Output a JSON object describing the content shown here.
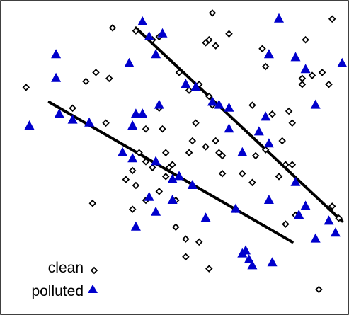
{
  "chart_data": {
    "type": "scatter",
    "title": "",
    "xlabel": "",
    "ylabel": "",
    "xlim": [
      0,
      100
    ],
    "ylim": [
      0,
      100
    ],
    "grid": false,
    "legend_position": "bottom-left",
    "border_color": "#000000",
    "series": [
      {
        "name": "clean",
        "marker": "diamond-outline",
        "color": "#000000",
        "points": [
          [
            60,
            98
          ],
          [
            30,
            93
          ],
          [
            37,
            92
          ],
          [
            44,
            90
          ],
          [
            42,
            89
          ],
          [
            59,
            89
          ],
          [
            65,
            91
          ],
          [
            75,
            86
          ],
          [
            88,
            89
          ],
          [
            96,
            96
          ],
          [
            58,
            88
          ],
          [
            61,
            87
          ],
          [
            76,
            80
          ],
          [
            50,
            78
          ],
          [
            25,
            78
          ],
          [
            22,
            75
          ],
          [
            29,
            76
          ],
          [
            4,
            73
          ],
          [
            56,
            74
          ],
          [
            53,
            72
          ],
          [
            87,
            76
          ],
          [
            90,
            77
          ],
          [
            93,
            78
          ],
          [
            87,
            74
          ],
          [
            95,
            74
          ],
          [
            59,
            70
          ],
          [
            72,
            67
          ],
          [
            83,
            65
          ],
          [
            60,
            67
          ],
          [
            44,
            66
          ],
          [
            18,
            66
          ],
          [
            28,
            61
          ],
          [
            78,
            64
          ],
          [
            84,
            61
          ],
          [
            55,
            61
          ],
          [
            40,
            59
          ],
          [
            45,
            59
          ],
          [
            54,
            55
          ],
          [
            61,
            55
          ],
          [
            53,
            51
          ],
          [
            58,
            53
          ],
          [
            62,
            51
          ],
          [
            63,
            50
          ],
          [
            76,
            52
          ],
          [
            81,
            55
          ],
          [
            73,
            50
          ],
          [
            82,
            47
          ],
          [
            80,
            43
          ],
          [
            84,
            47
          ],
          [
            38,
            51
          ],
          [
            46,
            51
          ],
          [
            47,
            46
          ],
          [
            40,
            48
          ],
          [
            42,
            46
          ],
          [
            36,
            45
          ],
          [
            34,
            42
          ],
          [
            48,
            47
          ],
          [
            37,
            40
          ],
          [
            46,
            43
          ],
          [
            44,
            38
          ],
          [
            40,
            35
          ],
          [
            49,
            35
          ],
          [
            36,
            32
          ],
          [
            24,
            34
          ],
          [
            63,
            44
          ],
          [
            69,
            44
          ],
          [
            72,
            41
          ],
          [
            67,
            32
          ],
          [
            56,
            21
          ],
          [
            49,
            26
          ],
          [
            52,
            22
          ],
          [
            82,
            27
          ],
          [
            85,
            30
          ],
          [
            96,
            33
          ],
          [
            98,
            29
          ],
          [
            59,
            12
          ],
          [
            52,
            16
          ],
          [
            92,
            5
          ]
        ]
      },
      {
        "name": "polluted",
        "marker": "triangle-filled",
        "color": "#0000cc",
        "points": [
          [
            39,
            95
          ],
          [
            41,
            90
          ],
          [
            45,
            91
          ],
          [
            43,
            84
          ],
          [
            13,
            84
          ],
          [
            80,
            96
          ],
          [
            77,
            84
          ],
          [
            85,
            83
          ],
          [
            88,
            79
          ],
          [
            99,
            81
          ],
          [
            35,
            81
          ],
          [
            13,
            76
          ],
          [
            52,
            74
          ],
          [
            5,
            60
          ],
          [
            14,
            64
          ],
          [
            18,
            62
          ],
          [
            23,
            61
          ],
          [
            37,
            64
          ],
          [
            39,
            64
          ],
          [
            36,
            60
          ],
          [
            44,
            67
          ],
          [
            55,
            73
          ],
          [
            60,
            68
          ],
          [
            62,
            67
          ],
          [
            65,
            66
          ],
          [
            76,
            63
          ],
          [
            91,
            67
          ],
          [
            74,
            58
          ],
          [
            65,
            59
          ],
          [
            69,
            51
          ],
          [
            77,
            54
          ],
          [
            33,
            51
          ],
          [
            36,
            49
          ],
          [
            43,
            48
          ],
          [
            48,
            42
          ],
          [
            50,
            43
          ],
          [
            54,
            40
          ],
          [
            48,
            35
          ],
          [
            41,
            36
          ],
          [
            43,
            31
          ],
          [
            37,
            26
          ],
          [
            58,
            29
          ],
          [
            67,
            32
          ],
          [
            77,
            35
          ],
          [
            85,
            41
          ],
          [
            88,
            33
          ],
          [
            86,
            30
          ],
          [
            95,
            28
          ],
          [
            91,
            22
          ],
          [
            97,
            24
          ],
          [
            69,
            17
          ],
          [
            71,
            15
          ],
          [
            72,
            13
          ],
          [
            78,
            14
          ],
          [
            70,
            18
          ]
        ]
      }
    ],
    "trend_lines": [
      {
        "x": [
          11,
          84
        ],
        "y": [
          68,
          21
        ]
      },
      {
        "x": [
          37,
          99
        ],
        "y": [
          93,
          28
        ]
      }
    ],
    "legend": [
      {
        "label": "clean",
        "marker": "diamond-outline"
      },
      {
        "label": "polluted",
        "marker": "triangle-filled"
      }
    ]
  }
}
